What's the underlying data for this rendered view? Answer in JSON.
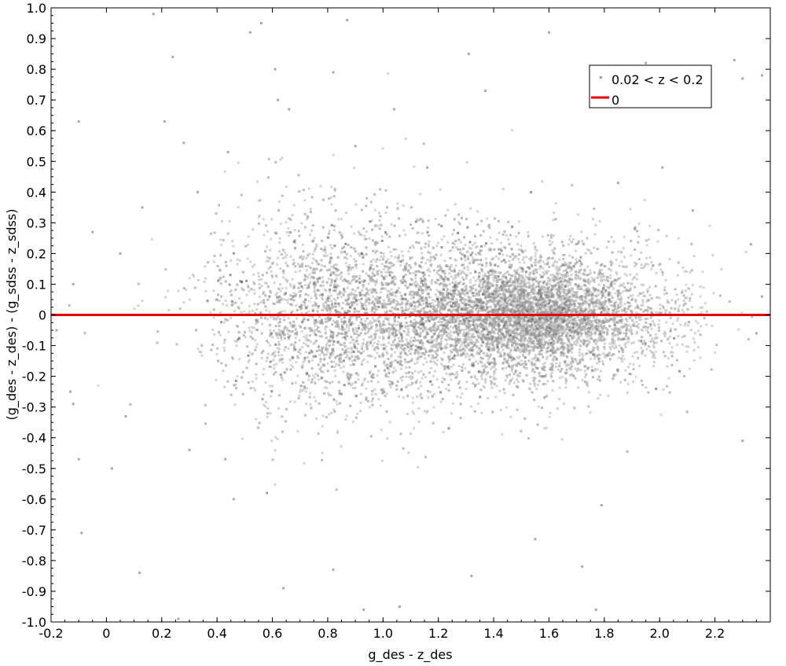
{
  "chart_data": {
    "type": "scatter",
    "xlabel": "g_des - z_des",
    "ylabel": "(g_des - z_des) - (g_sdss - z_sdss)",
    "xlim": [
      -0.2,
      2.4
    ],
    "ylim": [
      -1.0,
      1.0
    ],
    "grid": false,
    "legend_position": "top-right",
    "x_tick_labels": [
      "-0.2",
      "0",
      "0.2",
      "0.4",
      "0.6",
      "0.8",
      "1.0",
      "1.2",
      "1.4",
      "1.6",
      "1.8",
      "2.0",
      "2.2"
    ],
    "y_tick_labels": [
      "1.0",
      "0.9",
      "0.8",
      "0.7",
      "0.6",
      "0.5",
      "0.4",
      "0.3",
      "0.2",
      "0.1",
      "0",
      "-0.1",
      "-0.2",
      "-0.3",
      "-0.4",
      "-0.5",
      "-0.6",
      "-0.7",
      "-0.8",
      "-0.9",
      "-1.0"
    ],
    "series": [
      {
        "name": "0.02 < z < 0.2",
        "kind": "points",
        "color": "#a0a0a0",
        "summary": "dense cloud of points, densest near x≈1.55, y≈0; spread roughly ±0.2 in y across x 0.4–2.1",
        "points": [
          [
            0.17,
            0.98
          ],
          [
            0.56,
            0.95
          ],
          [
            0.87,
            0.96
          ],
          [
            1.6,
            0.92
          ],
          [
            0.52,
            0.92
          ],
          [
            0.24,
            0.84
          ],
          [
            2.27,
            0.83
          ],
          [
            0.61,
            0.8
          ],
          [
            0.82,
            0.79
          ],
          [
            1.31,
            0.85
          ],
          [
            1.95,
            0.82
          ],
          [
            2.3,
            0.77
          ],
          [
            2.37,
            0.78
          ],
          [
            -0.1,
            0.63
          ],
          [
            0.21,
            0.63
          ],
          [
            0.62,
            0.7
          ],
          [
            0.66,
            0.67
          ],
          [
            1.04,
            0.67
          ],
          [
            1.37,
            0.73
          ],
          [
            1.75,
            0.72
          ],
          [
            0.28,
            0.56
          ],
          [
            0.44,
            0.53
          ],
          [
            0.9,
            0.55
          ],
          [
            1.16,
            0.48
          ],
          [
            2.01,
            0.48
          ],
          [
            0.33,
            0.4
          ],
          [
            1.85,
            0.43
          ],
          [
            0.13,
            0.35
          ],
          [
            2.12,
            0.34
          ],
          [
            -0.05,
            0.27
          ],
          [
            0.05,
            0.2
          ],
          [
            2.33,
            0.23
          ],
          [
            -0.12,
            0.1
          ],
          [
            2.37,
            0.06
          ],
          [
            -0.18,
            -0.05
          ],
          [
            2.35,
            -0.06
          ],
          [
            -0.13,
            -0.25
          ],
          [
            -0.12,
            -0.29
          ],
          [
            0.07,
            -0.33
          ],
          [
            0.02,
            -0.5
          ],
          [
            -0.1,
            -0.47
          ],
          [
            0.3,
            -0.44
          ],
          [
            0.43,
            -0.47
          ],
          [
            2.3,
            -0.41
          ],
          [
            1.79,
            -0.62
          ],
          [
            1.55,
            -0.73
          ],
          [
            0.58,
            -0.58
          ],
          [
            0.46,
            -0.6
          ],
          [
            -0.09,
            -0.71
          ],
          [
            0.12,
            -0.84
          ],
          [
            0.64,
            -0.89
          ],
          [
            0.93,
            -0.96
          ],
          [
            1.06,
            -0.95
          ],
          [
            1.77,
            -0.96
          ],
          [
            0.26,
            -0.99
          ],
          [
            1.32,
            -0.85
          ],
          [
            1.72,
            -0.82
          ],
          [
            0.82,
            -0.83
          ],
          [
            1.91,
            0.28
          ],
          [
            1.88,
            -0.05
          ]
        ],
        "cloud": [
          {
            "x": 1.55,
            "y": 0.0,
            "sx": 0.18,
            "sy": 0.06,
            "w": 0.3
          },
          {
            "x": 1.45,
            "y": 0.0,
            "sx": 0.38,
            "sy": 0.09,
            "w": 0.3
          },
          {
            "x": 1.1,
            "y": 0.0,
            "sx": 0.42,
            "sy": 0.11,
            "w": 0.28
          },
          {
            "x": 0.8,
            "y": 0.02,
            "sx": 0.25,
            "sy": 0.14,
            "w": 0.12
          }
        ]
      },
      {
        "name": "0",
        "kind": "line",
        "color": "#e00000",
        "x": [
          -0.2,
          2.4
        ],
        "y": [
          0,
          0
        ]
      }
    ]
  }
}
